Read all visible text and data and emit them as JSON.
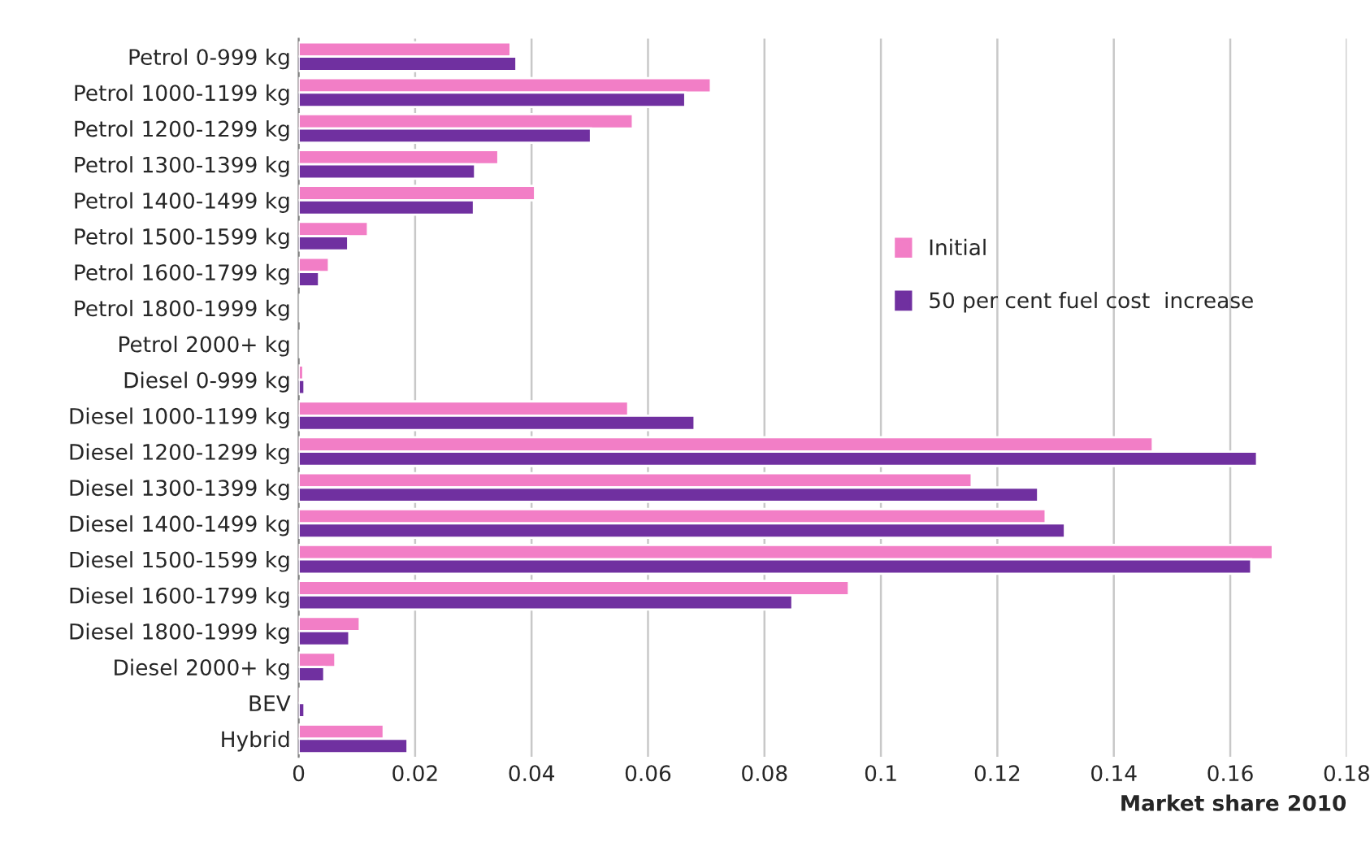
{
  "chart_data": {
    "type": "bar",
    "orientation": "horizontal",
    "xlabel": "Market share 2010",
    "categories": [
      "Petrol 0-999 kg",
      "Petrol 1000-1199 kg",
      "Petrol 1200-1299 kg",
      "Petrol 1300-1399 kg",
      "Petrol 1400-1499 kg",
      "Petrol 1500-1599 kg",
      "Petrol 1600-1799 kg",
      "Petrol 1800-1999 kg",
      "Petrol 2000+ kg",
      "Diesel 0-999 kg",
      "Diesel 1000-1199 kg",
      "Diesel 1200-1299 kg",
      "Diesel 1300-1399 kg",
      "Diesel 1400-1499 kg",
      "Diesel 1500-1599 kg",
      "Diesel 1600-1799 kg",
      "Diesel 1800-1999 kg",
      "Diesel 2000+ kg",
      "BEV",
      "Hybrid"
    ],
    "series": [
      {
        "name": "Initial",
        "color": "#f27ec6",
        "values": [
          0.0364,
          0.0708,
          0.0574,
          0.0343,
          0.0406,
          0.0119,
          0.0052,
          null,
          null,
          0.0008,
          0.0566,
          0.1467,
          0.1156,
          0.1283,
          0.1673,
          0.0945,
          0.0105,
          0.0063,
          0.0003,
          0.0146
        ]
      },
      {
        "name": "50 per cent fuel cost  increase",
        "color": "#7030a0",
        "values": [
          0.0374,
          0.0664,
          0.0502,
          0.0303,
          0.0301,
          0.0085,
          0.0035,
          null,
          null,
          0.001,
          0.068,
          0.1646,
          0.127,
          0.1316,
          0.1636,
          0.0848,
          0.0087,
          0.0044,
          0.001,
          0.0187
        ]
      }
    ],
    "xlim": [
      0,
      0.18
    ],
    "xticks": [
      0,
      0.02,
      0.04,
      0.06,
      0.08,
      0.1,
      0.12,
      0.14,
      0.16,
      0.18
    ],
    "grid": "x",
    "legend": "right"
  }
}
